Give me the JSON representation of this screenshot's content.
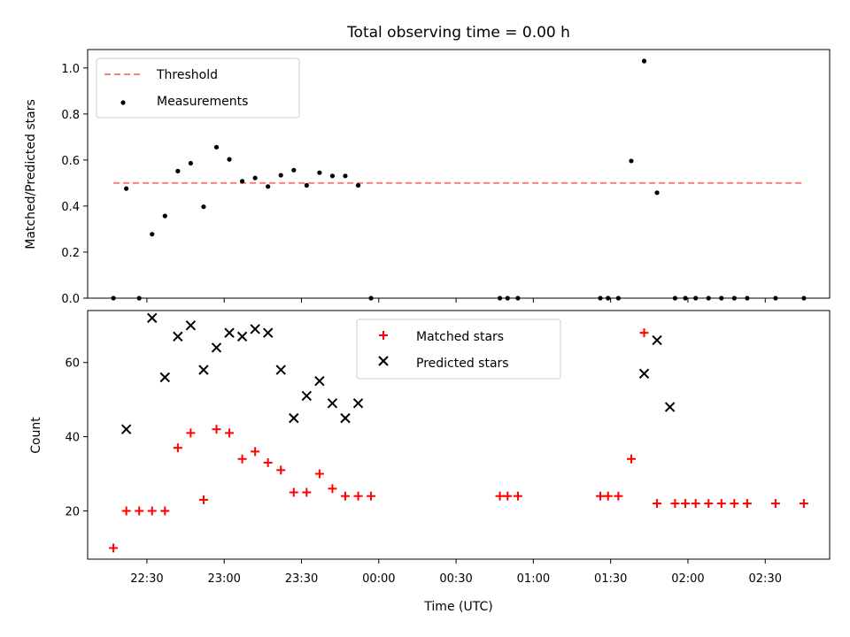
{
  "figure": {
    "title": "Total observing time = 0.00 h",
    "xlabel": "Time (UTC)"
  },
  "chart_data": [
    {
      "type": "scatter",
      "title": "Total observing time = 0.00 h",
      "xlabel": "",
      "ylabel": "Matched/Predicted stars",
      "xlim": [
        "22:07",
        "02:55"
      ],
      "ylim": [
        0,
        1.08
      ],
      "yticks": [
        0.0,
        0.2,
        0.4,
        0.6,
        0.8,
        1.0
      ],
      "ytick_labels": [
        "0.0",
        "0.2",
        "0.4",
        "0.6",
        "0.8",
        "1.0"
      ],
      "grid": false,
      "legend_position": "top-left",
      "threshold": {
        "name": "Threshold",
        "value": 0.5,
        "x_range": [
          "22:17",
          "02:45"
        ],
        "color": "#ff7f7f",
        "style": "dashed"
      },
      "series": [
        {
          "name": "Measurements",
          "marker": "dot",
          "color": "#000000",
          "x": [
            "22:17",
            "22:22",
            "22:27",
            "22:32",
            "22:37",
            "22:42",
            "22:47",
            "22:52",
            "22:57",
            "23:02",
            "23:07",
            "23:12",
            "23:17",
            "23:22",
            "23:27",
            "23:32",
            "23:37",
            "23:42",
            "23:47",
            "23:52",
            "23:57",
            "00:47",
            "00:50",
            "00:54",
            "01:26",
            "01:29",
            "01:33",
            "01:38",
            "01:43",
            "01:48",
            "01:55",
            "01:59",
            "02:03",
            "02:08",
            "02:13",
            "02:18",
            "02:23",
            "02:34",
            "02:45"
          ],
          "y": [
            0.0,
            0.476,
            0.0,
            0.278,
            0.357,
            0.552,
            0.586,
            0.397,
            0.656,
            0.603,
            0.508,
            0.522,
            0.485,
            0.534,
            0.556,
            0.49,
            0.545,
            0.531,
            0.531,
            0.49,
            0.0,
            0.0,
            0.0,
            0.0,
            0.0,
            0.0,
            0.0,
            0.596,
            1.03,
            0.458,
            0.0,
            0.0,
            0.0,
            0.0,
            0.0,
            0.0,
            0.0,
            0.0,
            0.0
          ]
        }
      ]
    },
    {
      "type": "scatter",
      "xlabel": "Time (UTC)",
      "ylabel": "Count",
      "xlim": [
        "22:07",
        "02:55"
      ],
      "ylim": [
        7,
        74
      ],
      "yticks": [
        20,
        40,
        60
      ],
      "xtick_labels": [
        "22:30",
        "23:00",
        "23:30",
        "00:00",
        "00:30",
        "01:00",
        "01:30",
        "02:00",
        "02:30"
      ],
      "grid": false,
      "legend_position": "upper-center",
      "series": [
        {
          "name": "Matched stars",
          "marker": "plus",
          "color": "#ff0000",
          "x": [
            "22:17",
            "22:22",
            "22:27",
            "22:32",
            "22:37",
            "22:42",
            "22:47",
            "22:52",
            "22:57",
            "23:02",
            "23:07",
            "23:12",
            "23:17",
            "23:22",
            "23:27",
            "23:32",
            "23:37",
            "23:42",
            "23:47",
            "23:52",
            "23:57",
            "00:47",
            "00:50",
            "00:54",
            "01:26",
            "01:29",
            "01:33",
            "01:38",
            "01:43",
            "01:48",
            "01:55",
            "01:59",
            "02:03",
            "02:08",
            "02:13",
            "02:18",
            "02:23",
            "02:34",
            "02:45"
          ],
          "y": [
            10,
            20,
            20,
            20,
            20,
            37,
            41,
            23,
            42,
            41,
            34,
            36,
            33,
            31,
            25,
            25,
            30,
            26,
            24,
            24,
            24,
            24,
            24,
            24,
            24,
            24,
            24,
            34,
            68,
            22,
            22,
            22,
            22,
            22,
            22,
            22,
            22,
            22,
            22
          ]
        },
        {
          "name": "Predicted stars",
          "marker": "x",
          "color": "#000000",
          "x": [
            "22:22",
            "22:32",
            "22:37",
            "22:42",
            "22:47",
            "22:52",
            "22:57",
            "23:02",
            "23:07",
            "23:12",
            "23:17",
            "23:22",
            "23:27",
            "23:32",
            "23:37",
            "23:42",
            "23:47",
            "23:52",
            "01:43",
            "01:48",
            "01:53"
          ],
          "y": [
            42,
            72,
            56,
            67,
            70,
            58,
            64,
            68,
            67,
            69,
            68,
            58,
            45,
            51,
            55,
            49,
            45,
            49,
            57,
            66,
            48
          ]
        }
      ]
    }
  ]
}
